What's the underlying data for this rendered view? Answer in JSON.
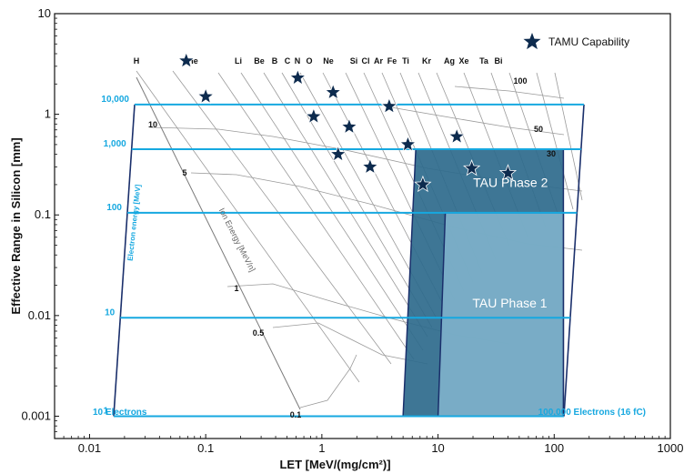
{
  "chart_data": {
    "type": "scatter",
    "xlabel": "LET [MeV/(mg/cm²)]",
    "ylabel": "Effective Range in Silicon [mm]",
    "xscale": "log",
    "yscale": "log",
    "xlim": [
      0.005,
      1000
    ],
    "ylim": [
      0.0006,
      10
    ],
    "x_ticks": [
      "0.01",
      "0.1",
      "1",
      "10",
      "100",
      "1000"
    ],
    "y_ticks": [
      "0.001",
      "0.01",
      "0.1",
      "1",
      "10"
    ],
    "legend": {
      "label": "TAMU Capability",
      "position": "top-right"
    },
    "elements": [
      "H",
      "He",
      "Li",
      "Be",
      "B",
      "C",
      "N",
      "O",
      "Ne",
      "Si",
      "Cl",
      "Ar",
      "Fe",
      "Ti",
      "Kr",
      "Ag",
      "Xe",
      "Ta",
      "Bi"
    ],
    "ion_energy_axis_title": "Ion Energy [MeV/n]",
    "ion_energy_labels": [
      "100",
      "50",
      "30",
      "10",
      "5",
      "1",
      "0.5",
      "0.1"
    ],
    "electron_energy_axis_title": "Electron energy [MeV]",
    "electron_energy_levels": [
      {
        "label": "10,000",
        "range_mm": 1.25
      },
      {
        "label": "1,000",
        "range_mm": 0.45
      },
      {
        "label": "100",
        "range_mm": 0.105
      },
      {
        "label": "10",
        "range_mm": 0.0095
      },
      {
        "label": "1",
        "range_mm": 0.001
      }
    ],
    "electron_count_labels": {
      "low": "10 Electrons",
      "high": "100,000 Electrons (16 fC)"
    },
    "regions": [
      {
        "name": "TAU Phase 2",
        "let_range": [
          5,
          120
        ],
        "range_mm": [
          0.001,
          0.45
        ]
      },
      {
        "name": "TAU Phase 1",
        "let_range": [
          10,
          120
        ],
        "range_mm": [
          0.001,
          0.105
        ]
      }
    ],
    "tamu_points": [
      {
        "x": 0.068,
        "y": 3.4
      },
      {
        "x": 0.1,
        "y": 1.5
      },
      {
        "x": 0.62,
        "y": 2.3
      },
      {
        "x": 0.85,
        "y": 0.95
      },
      {
        "x": 1.25,
        "y": 1.65
      },
      {
        "x": 1.38,
        "y": 0.4
      },
      {
        "x": 1.72,
        "y": 0.75
      },
      {
        "x": 2.6,
        "y": 0.3
      },
      {
        "x": 3.8,
        "y": 1.2
      },
      {
        "x": 5.5,
        "y": 0.5
      },
      {
        "x": 7.4,
        "y": 0.2
      },
      {
        "x": 14.5,
        "y": 0.6
      },
      {
        "x": 19.5,
        "y": 0.29
      },
      {
        "x": 40,
        "y": 0.26
      }
    ],
    "colors": {
      "cyan": "#16a8e0",
      "navy": "#1a2f6b",
      "star": "#0d2b4e",
      "phase2": "#2e6a8c",
      "phase1": "#7fb2cb",
      "grid_curves": "#9a9a9a"
    }
  }
}
